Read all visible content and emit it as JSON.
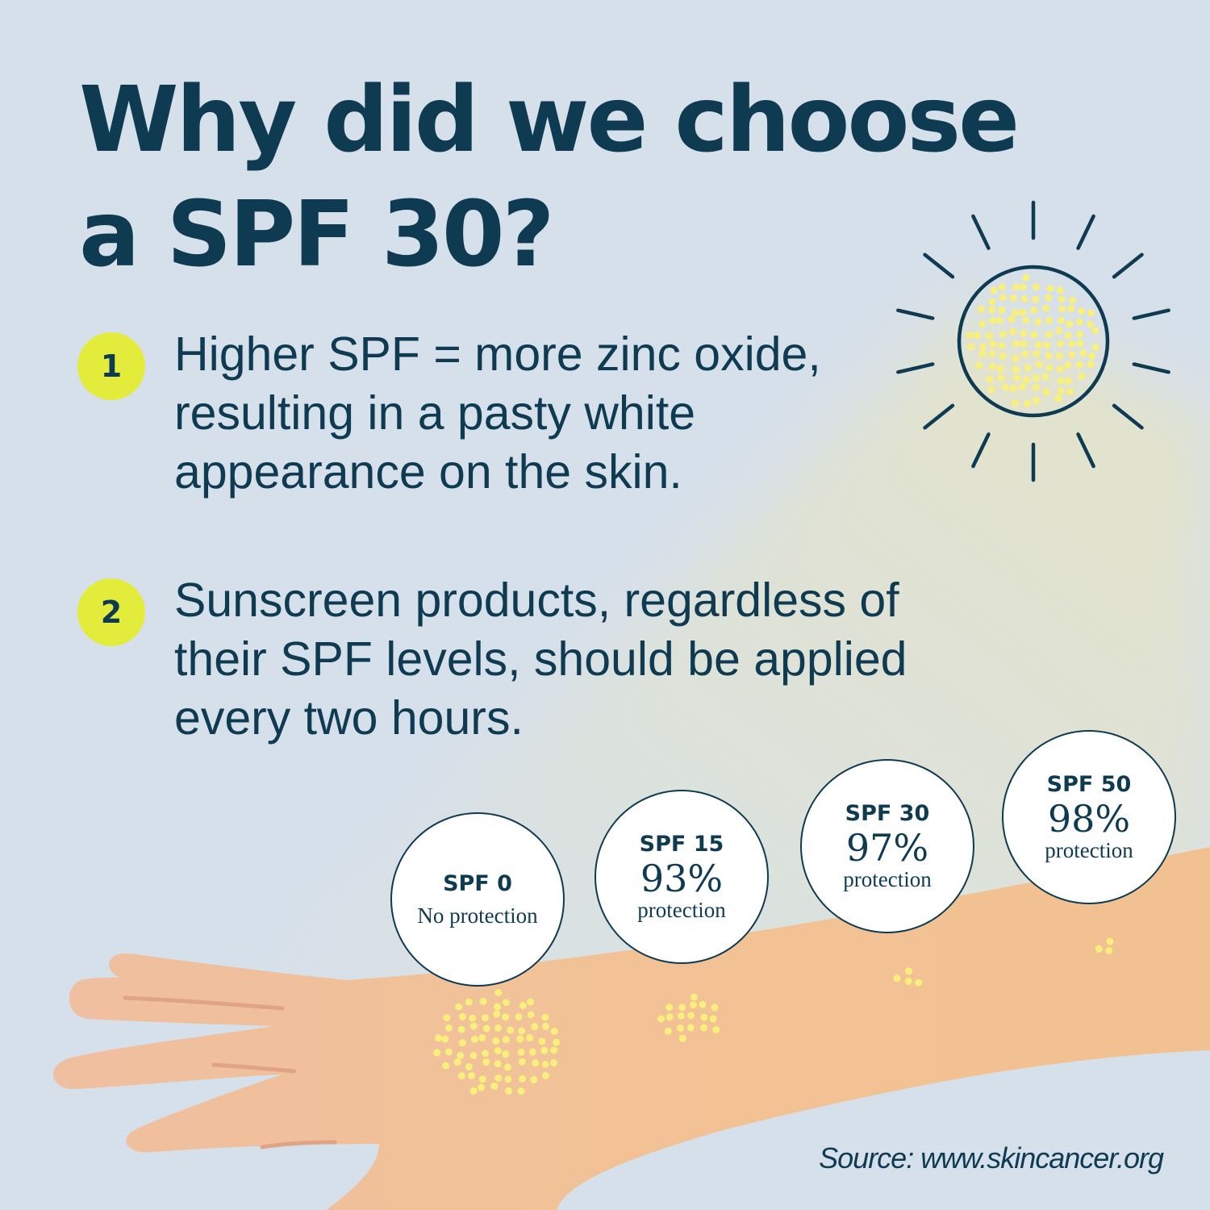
{
  "title": {
    "line1": "Why did we choose",
    "line2": "a SPF 30?"
  },
  "points": [
    {
      "number": "1",
      "text": "Higher SPF = more zinc oxide, resulting in a pasty white appearance on the skin."
    },
    {
      "number": "2",
      "text": "Sunscreen products, regardless of their SPF levels, should be applied every two hours."
    }
  ],
  "spf_levels": [
    {
      "label": "SPF 0",
      "percent": "",
      "desc": "No protection"
    },
    {
      "label": "SPF 15",
      "percent": "93%",
      "desc": "protection"
    },
    {
      "label": "SPF 30",
      "percent": "97%",
      "desc": "protection"
    },
    {
      "label": "SPF 50",
      "percent": "98%",
      "desc": "protection"
    }
  ],
  "source": "Source: www.skincancer.org",
  "icons": [
    "sun-icon",
    "arm-illustration",
    "uv-dots"
  ],
  "colors": {
    "navy": "#0e3a52",
    "badge_yellow": "#e3ec3b",
    "dot_yellow": "#f8ef7c",
    "skin": "#f0c19c",
    "background": "#d6e0ea"
  }
}
